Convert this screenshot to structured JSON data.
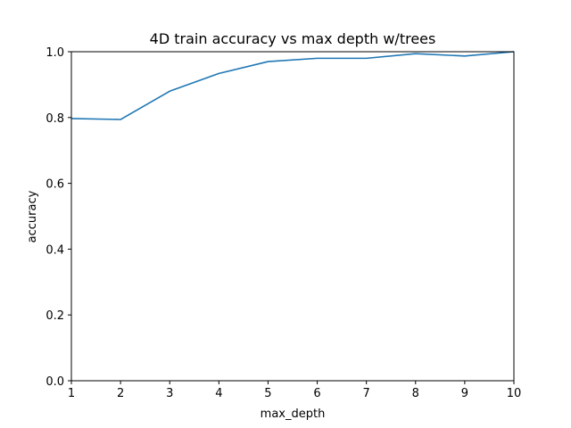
{
  "chart_data": {
    "type": "line",
    "title": "4D train accuracy vs max depth w/trees",
    "xlabel": "max_depth",
    "ylabel": "accuracy",
    "xlim": [
      1,
      10
    ],
    "ylim": [
      0.0,
      1.0
    ],
    "xticks": [
      "1",
      "2",
      "3",
      "4",
      "5",
      "6",
      "7",
      "8",
      "9",
      "10"
    ],
    "yticks": [
      "0.0",
      "0.2",
      "0.4",
      "0.6",
      "0.8",
      "1.0"
    ],
    "grid": false,
    "series": [
      {
        "color": "#1f77b4",
        "x": [
          1,
          2,
          3,
          4,
          5,
          6,
          7,
          8,
          9,
          10
        ],
        "y": [
          0.797,
          0.794,
          0.88,
          0.934,
          0.97,
          0.98,
          0.98,
          0.994,
          0.987,
          1.0
        ]
      }
    ]
  }
}
